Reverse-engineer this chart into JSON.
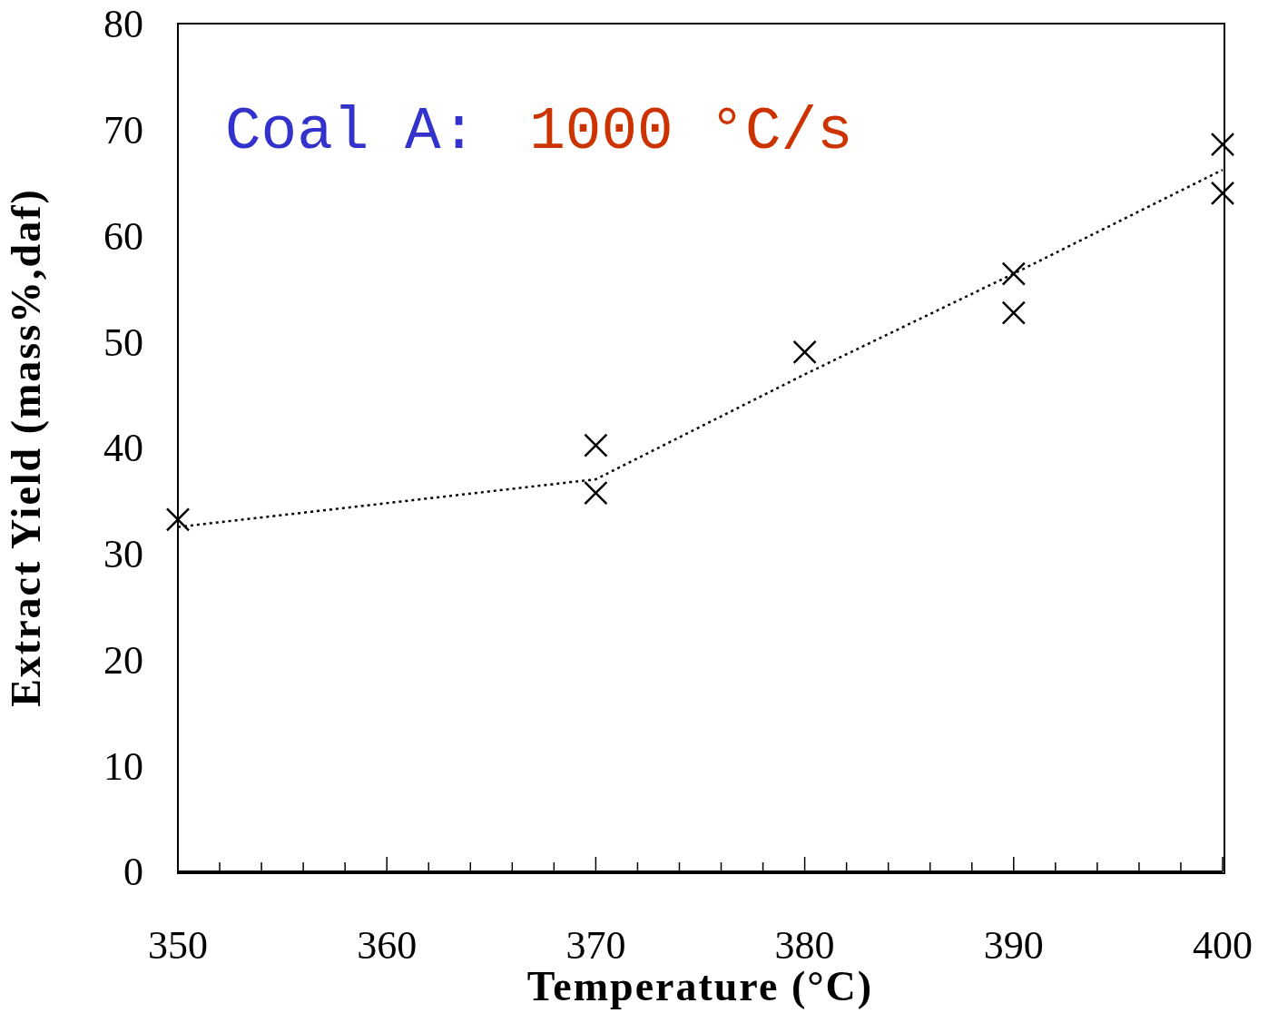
{
  "chart_data": {
    "type": "scatter",
    "xlabel": "Temperature (°C)",
    "ylabel": "Extract Yield (mass%,daf)",
    "annotations": [
      "Coal A:",
      "1000 °C/s"
    ],
    "xlim": [
      350,
      400
    ],
    "ylim": [
      0,
      80
    ],
    "xticks": [
      350,
      {
        "value": 352,
        "label": null
      },
      {
        "value": 354,
        "label": null
      },
      {
        "value": 356,
        "label": null
      },
      {
        "value": 358,
        "label": null
      },
      360,
      {
        "value": 362,
        "label": null
      },
      {
        "value": 364,
        "label": null
      },
      {
        "value": 366,
        "label": null
      },
      {
        "value": 368,
        "label": null
      },
      370,
      {
        "value": 372,
        "label": null
      },
      {
        "value": 374,
        "label": null
      },
      {
        "value": 376,
        "label": null
      },
      {
        "value": 378,
        "label": null
      },
      380,
      {
        "value": 382,
        "label": null
      },
      {
        "value": 384,
        "label": null
      },
      {
        "value": 386,
        "label": null
      },
      {
        "value": 388,
        "label": null
      },
      390,
      {
        "value": 392,
        "label": null
      },
      {
        "value": 394,
        "label": null
      },
      {
        "value": 396,
        "label": null
      },
      {
        "value": 398,
        "label": null
      },
      400
    ],
    "yticks": [
      0,
      10,
      20,
      30,
      40,
      50,
      60,
      70,
      80
    ],
    "series": [
      {
        "type": "scatter",
        "color": "#000000",
        "marker": "cross",
        "x": [
          350,
          370,
          370,
          380,
          390,
          390,
          400,
          400
        ],
        "values": [
          33.2,
          40.2,
          35.7,
          49.0,
          56.4,
          52.7,
          68.6,
          64.0
        ]
      },
      {
        "type": "line",
        "color": "#000000",
        "line_style": "dotted",
        "marker": "none",
        "x": [
          350,
          370,
          380,
          390,
          400
        ],
        "values": [
          32.5,
          37.0,
          46.9,
          56.4,
          66.2
        ]
      }
    ]
  }
}
